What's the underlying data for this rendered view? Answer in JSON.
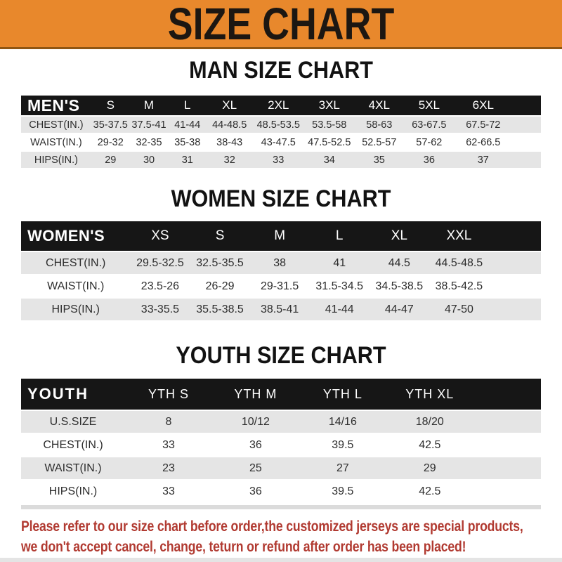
{
  "banner": {
    "title": "SIZE CHART"
  },
  "chart_data": [
    {
      "type": "table",
      "id": "men",
      "title": "MAN SIZE CHART",
      "corner_label": "MEN'S",
      "columns": [
        "S",
        "M",
        "L",
        "XL",
        "2XL",
        "3XL",
        "4XL",
        "5XL",
        "6XL"
      ],
      "rows": [
        {
          "label": "CHEST(IN.)",
          "values": [
            "35-37.5",
            "37.5-41",
            "41-44",
            "44-48.5",
            "48.5-53.5",
            "53.5-58",
            "58-63",
            "63-67.5",
            "67.5-72"
          ]
        },
        {
          "label": "WAIST(IN.)",
          "values": [
            "29-32",
            "32-35",
            "35-38",
            "38-43",
            "43-47.5",
            "47.5-52.5",
            "52.5-57",
            "57-62",
            "62-66.5"
          ]
        },
        {
          "label": "HIPS(IN.)",
          "values": [
            "29",
            "30",
            "31",
            "32",
            "33",
            "34",
            "35",
            "36",
            "37"
          ]
        }
      ]
    },
    {
      "type": "table",
      "id": "women",
      "title": "WOMEN SIZE CHART",
      "corner_label": "WOMEN'S",
      "columns": [
        "XS",
        "S",
        "M",
        "L",
        "XL",
        "XXL"
      ],
      "rows": [
        {
          "label": "CHEST(IN.)",
          "values": [
            "29.5-32.5",
            "32.5-35.5",
            "38",
            "41",
            "44.5",
            "44.5-48.5"
          ]
        },
        {
          "label": "WAIST(IN.)",
          "values": [
            "23.5-26",
            "26-29",
            "29-31.5",
            "31.5-34.5",
            "34.5-38.5",
            "38.5-42.5"
          ]
        },
        {
          "label": "HIPS(IN.)",
          "values": [
            "33-35.5",
            "35.5-38.5",
            "38.5-41",
            "41-44",
            "44-47",
            "47-50"
          ]
        }
      ]
    },
    {
      "type": "table",
      "id": "youth",
      "title": "YOUTH SIZE CHART",
      "corner_label": "YOUTH",
      "columns": [
        "YTH S",
        "YTH M",
        "YTH L",
        "YTH XL"
      ],
      "rows": [
        {
          "label": "U.S.SIZE",
          "values": [
            "8",
            "10/12",
            "14/16",
            "18/20"
          ]
        },
        {
          "label": "CHEST(IN.)",
          "values": [
            "33",
            "36",
            "39.5",
            "42.5"
          ]
        },
        {
          "label": "WAIST(IN.)",
          "values": [
            "23",
            "25",
            "27",
            "29"
          ]
        },
        {
          "label": "HIPS(IN.)",
          "values": [
            "33",
            "36",
            "39.5",
            "42.5"
          ]
        }
      ]
    }
  ],
  "disclaimer": {
    "line1": "Please refer to our size chart before order,the customized jerseys are special products,",
    "line2": "we don't accept cancel, change, teturn or refund after order has been placed!"
  },
  "colors": {
    "banner_orange": "#E8882C",
    "table_header_black": "#161616",
    "row_gray": "#E5E5E5",
    "disclaimer_red": "#B13A31"
  }
}
